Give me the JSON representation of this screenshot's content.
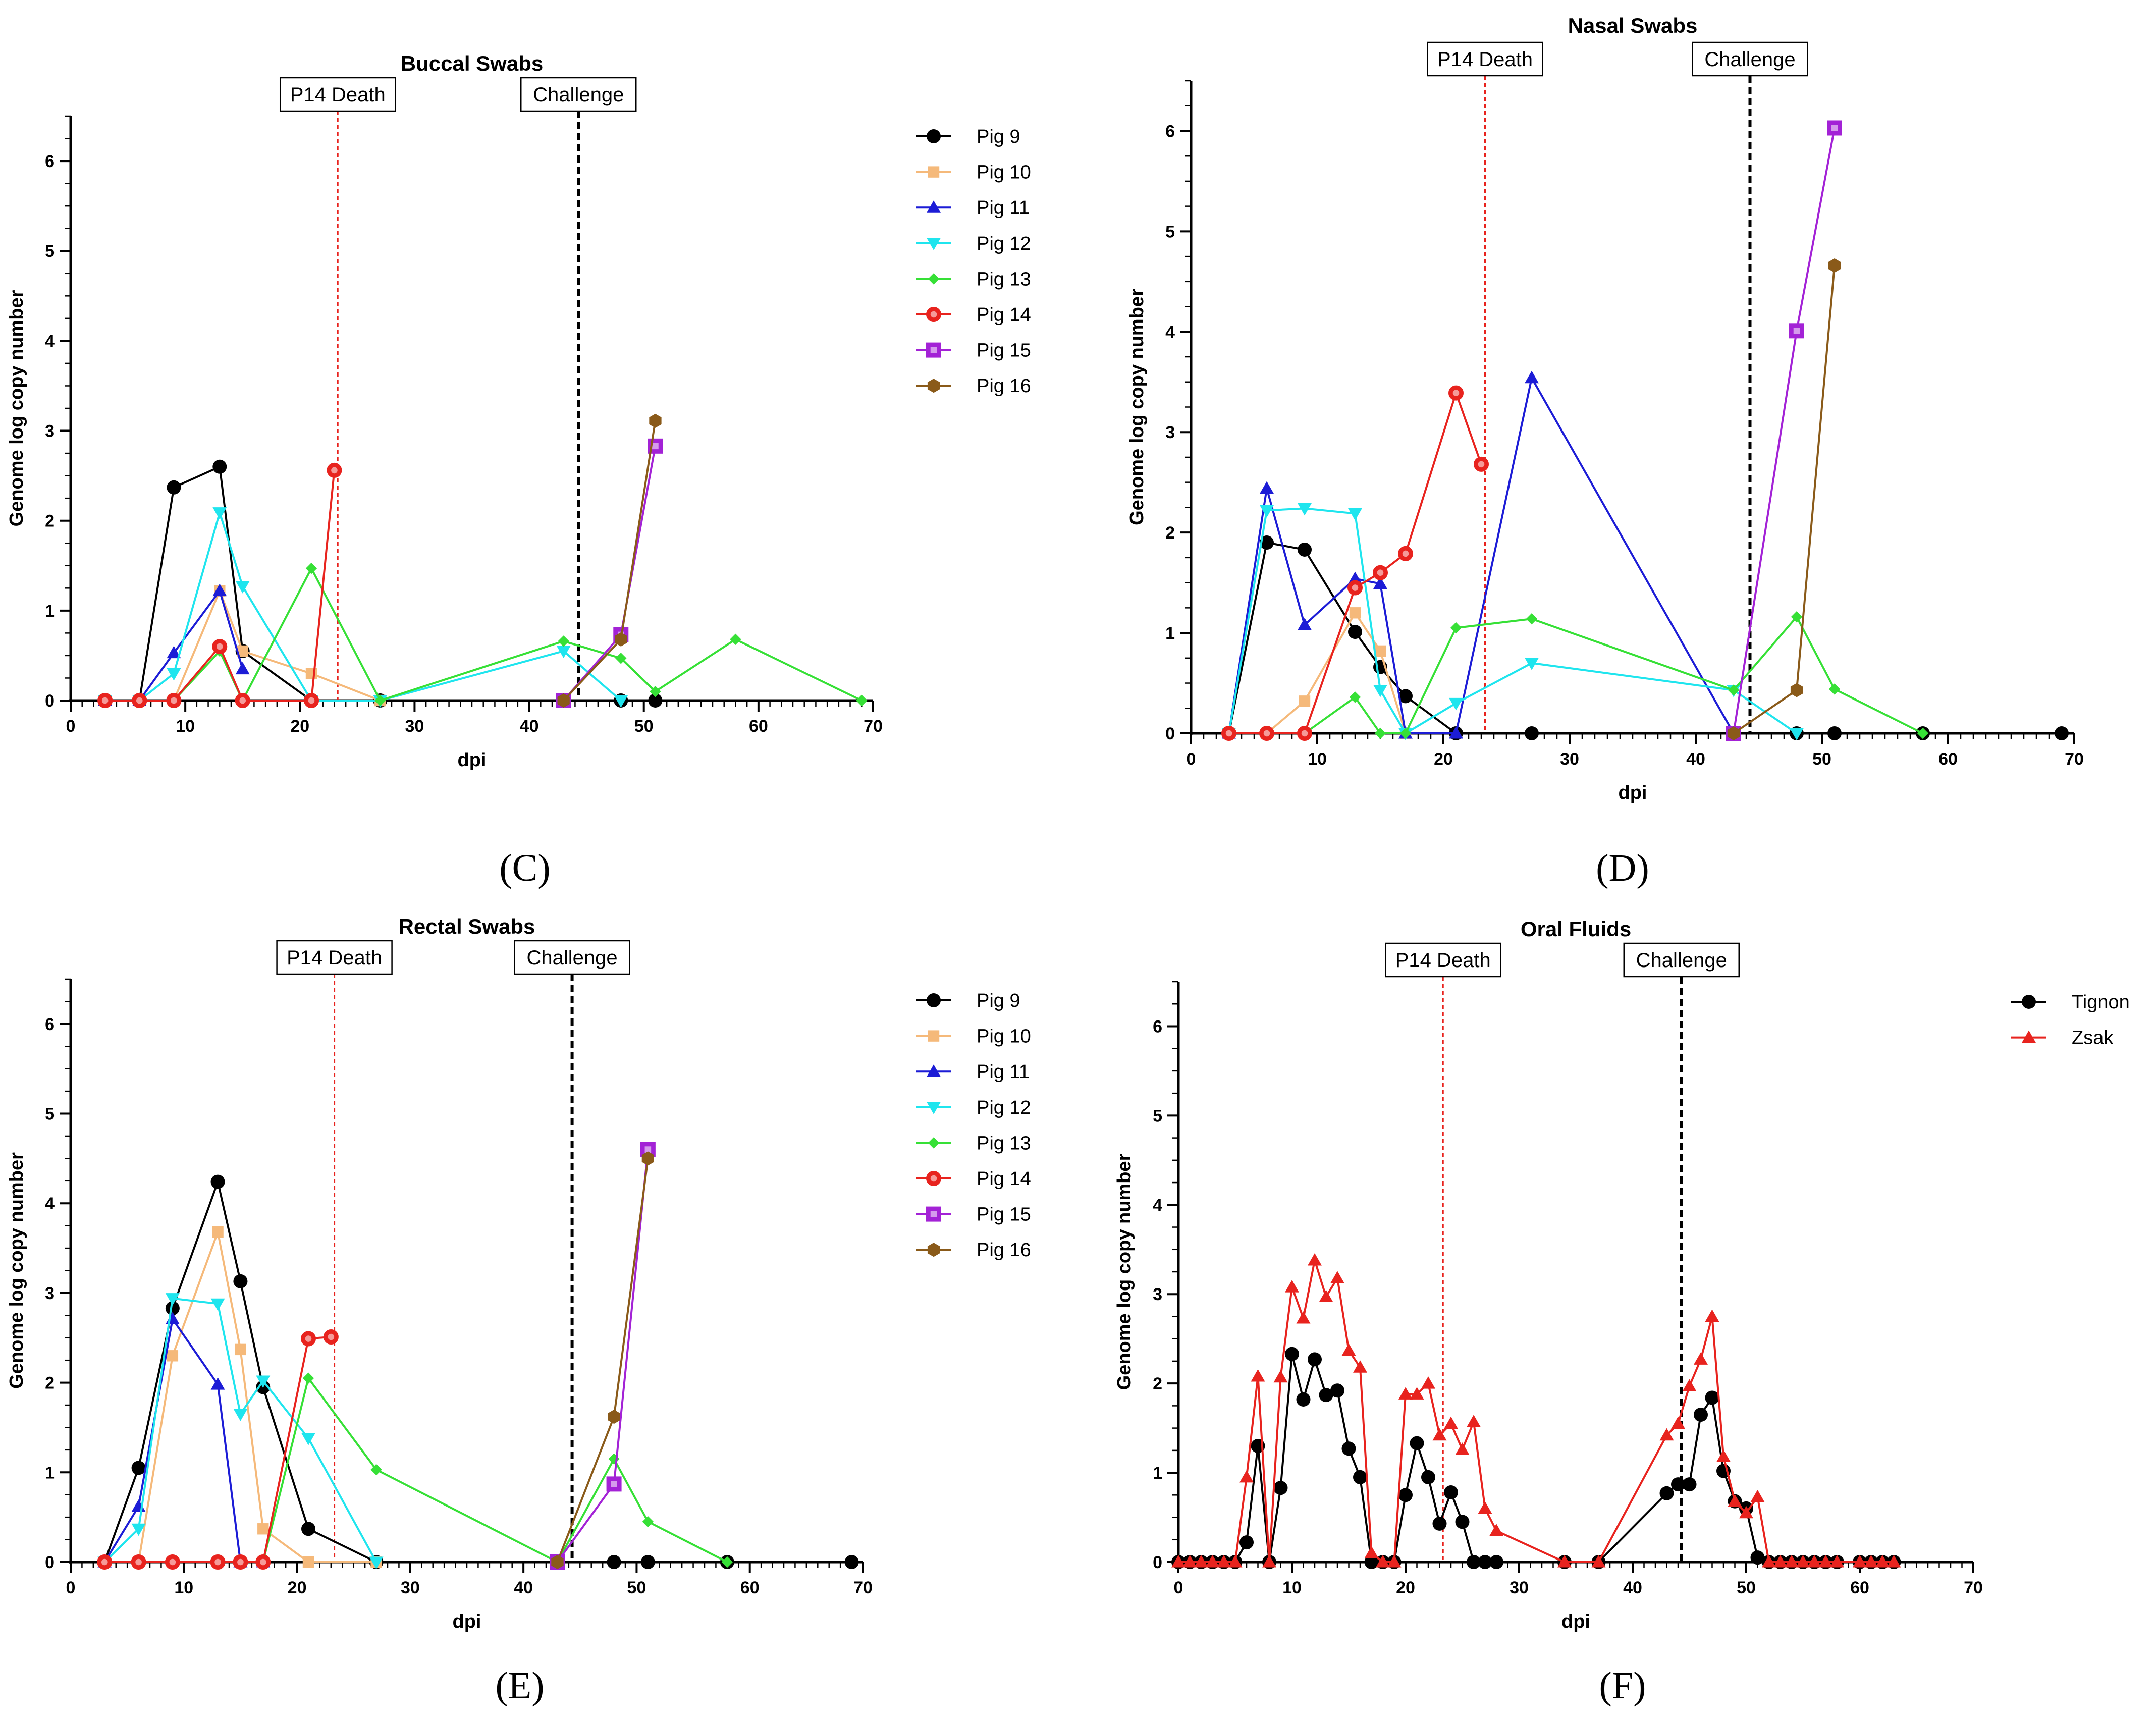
{
  "chart_data": [
    {
      "type": "line",
      "title": "Buccal Swabs",
      "xlabel": "dpi",
      "ylabel": "Genome log copy number",
      "xlim": [
        0,
        70
      ],
      "ylim": [
        0,
        6.5
      ],
      "xticks": [
        0,
        10,
        20,
        30,
        40,
        50,
        60,
        70
      ],
      "yticks": [
        0,
        1,
        2,
        3,
        4,
        5,
        6
      ],
      "annotations": [
        {
          "label": "P14 Death",
          "x": 23.3,
          "color": "#e8231e"
        },
        {
          "label": "Challenge",
          "x": 44.3,
          "color": "#000000"
        }
      ],
      "legend": "right",
      "series": [
        {
          "name": "Pig 9",
          "color": "#000000",
          "marker": "circle",
          "x": [
            3,
            6,
            9,
            13,
            15,
            21,
            27,
            48,
            51
          ],
          "y": [
            0,
            0,
            2.37,
            2.6,
            0.55,
            0,
            0,
            0,
            0
          ]
        },
        {
          "name": "Pig 10",
          "color": "#f5b97a",
          "marker": "square",
          "x": [
            3,
            6,
            9,
            13,
            15,
            21,
            27
          ],
          "y": [
            0,
            0,
            0,
            1.22,
            0.55,
            0.3,
            0
          ]
        },
        {
          "name": "Pig 11",
          "color": "#1c1cd6",
          "marker": "triangle-up",
          "x": [
            3,
            6,
            9,
            13,
            15
          ],
          "y": [
            0,
            0,
            0.53,
            1.22,
            0.35
          ]
        },
        {
          "name": "Pig 12",
          "color": "#1fe5ee",
          "marker": "triangle-down",
          "x": [
            3,
            6,
            9,
            13,
            15,
            21,
            27,
            43,
            48
          ],
          "y": [
            0,
            0,
            0.3,
            2.09,
            1.27,
            0,
            0,
            0.55,
            0
          ]
        },
        {
          "name": "Pig 13",
          "color": "#36e036",
          "marker": "diamond",
          "x": [
            3,
            6,
            9,
            13,
            15,
            21,
            27,
            43,
            48,
            51,
            58,
            69
          ],
          "y": [
            0,
            0,
            0,
            0.55,
            0,
            1.47,
            0,
            0.66,
            0.47,
            0.1,
            0.68,
            0
          ]
        },
        {
          "name": "Pig 14",
          "color": "#e8231e",
          "marker": "circle-open",
          "x": [
            3,
            6,
            9,
            13,
            15,
            21,
            23
          ],
          "y": [
            0,
            0,
            0,
            0.6,
            0,
            0,
            2.56
          ]
        },
        {
          "name": "Pig 15",
          "color": "#a322d6",
          "marker": "square-open",
          "x": [
            43,
            48,
            51
          ],
          "y": [
            0,
            0.73,
            2.83
          ]
        },
        {
          "name": "Pig 16",
          "color": "#8a5a19",
          "marker": "hexagon",
          "x": [
            43,
            48,
            51
          ],
          "y": [
            0,
            0.68,
            3.11
          ]
        }
      ]
    },
    {
      "type": "line",
      "title": "Nasal Swabs",
      "xlabel": "dpi",
      "ylabel": "Genome log copy number",
      "xlim": [
        0,
        70
      ],
      "ylim": [
        0,
        6.5
      ],
      "xticks": [
        0,
        10,
        20,
        30,
        40,
        50,
        60,
        70
      ],
      "yticks": [
        0,
        1,
        2,
        3,
        4,
        5,
        6
      ],
      "annotations": [
        {
          "label": "P14 Death",
          "x": 23.3,
          "color": "#e8231e"
        },
        {
          "label": "Challenge",
          "x": 44.3,
          "color": "#000000"
        }
      ],
      "legend": "none",
      "series": [
        {
          "name": "Pig 9",
          "color": "#000000",
          "marker": "circle",
          "x": [
            3,
            6,
            9,
            13,
            15,
            17,
            21,
            27,
            43,
            48,
            51,
            58,
            69
          ],
          "y": [
            0,
            1.9,
            1.83,
            1.01,
            0.66,
            0.37,
            0,
            0,
            0,
            0,
            0,
            0,
            0
          ]
        },
        {
          "name": "Pig 10",
          "color": "#f5b97a",
          "marker": "square",
          "x": [
            3,
            6,
            9,
            13,
            15,
            17
          ],
          "y": [
            0,
            0,
            0.32,
            1.2,
            0.82,
            0
          ]
        },
        {
          "name": "Pig 11",
          "color": "#1c1cd6",
          "marker": "triangle-up",
          "x": [
            3,
            6,
            9,
            13,
            15,
            17,
            21,
            27,
            43
          ],
          "y": [
            0,
            2.44,
            1.08,
            1.54,
            1.49,
            0,
            0,
            3.54,
            0
          ]
        },
        {
          "name": "Pig 12",
          "color": "#1fe5ee",
          "marker": "triangle-down",
          "x": [
            3,
            6,
            9,
            13,
            15,
            17,
            21,
            27,
            43,
            48
          ],
          "y": [
            0,
            2.22,
            2.24,
            2.19,
            0.43,
            0,
            0.3,
            0.7,
            0.43,
            0
          ]
        },
        {
          "name": "Pig 13",
          "color": "#36e036",
          "marker": "diamond",
          "x": [
            3,
            6,
            9,
            13,
            15,
            17,
            21,
            27,
            43,
            48,
            51,
            58
          ],
          "y": [
            0,
            0,
            0,
            0.36,
            0,
            0,
            1.05,
            1.14,
            0.43,
            1.16,
            0.44,
            0
          ]
        },
        {
          "name": "Pig 14",
          "color": "#e8231e",
          "marker": "circle-open",
          "x": [
            3,
            6,
            9,
            13,
            15,
            17,
            21,
            23
          ],
          "y": [
            0,
            0,
            0,
            1.45,
            1.6,
            1.79,
            3.39,
            2.68
          ]
        },
        {
          "name": "Pig 15",
          "color": "#a322d6",
          "marker": "square-open",
          "x": [
            43,
            48,
            51
          ],
          "y": [
            0,
            4.01,
            6.03
          ]
        },
        {
          "name": "Pig 16",
          "color": "#8a5a19",
          "marker": "hexagon",
          "x": [
            43,
            48,
            51
          ],
          "y": [
            0,
            0.43,
            4.66
          ]
        }
      ]
    },
    {
      "type": "line",
      "title": "Rectal Swabs",
      "xlabel": "dpi",
      "ylabel": "Genome log copy number",
      "xlim": [
        0,
        70
      ],
      "ylim": [
        0,
        6.5
      ],
      "xticks": [
        0,
        10,
        20,
        30,
        40,
        50,
        60,
        70
      ],
      "yticks": [
        0,
        1,
        2,
        3,
        4,
        5,
        6
      ],
      "annotations": [
        {
          "label": "P14 Death",
          "x": 23.3,
          "color": "#e8231e"
        },
        {
          "label": "Challenge",
          "x": 44.3,
          "color": "#000000"
        }
      ],
      "legend": "right",
      "series": [
        {
          "name": "Pig 9",
          "color": "#000000",
          "marker": "circle",
          "x": [
            3,
            6,
            9,
            13,
            15,
            17,
            21,
            27,
            48,
            51,
            58,
            69
          ],
          "y": [
            0,
            1.05,
            2.83,
            4.24,
            3.13,
            1.95,
            0.37,
            0,
            0,
            0,
            0,
            0
          ]
        },
        {
          "name": "Pig 10",
          "color": "#f5b97a",
          "marker": "square",
          "x": [
            3,
            6,
            9,
            13,
            15,
            17,
            21,
            27
          ],
          "y": [
            0,
            0,
            2.3,
            3.68,
            2.37,
            0.37,
            0,
            0
          ]
        },
        {
          "name": "Pig 11",
          "color": "#1c1cd6",
          "marker": "triangle-up",
          "x": [
            3,
            6,
            9,
            13,
            15,
            17
          ],
          "y": [
            0,
            0.62,
            2.71,
            1.98,
            0,
            0
          ]
        },
        {
          "name": "Pig 12",
          "color": "#1fe5ee",
          "marker": "triangle-down",
          "x": [
            3,
            6,
            9,
            13,
            15,
            17,
            21,
            27
          ],
          "y": [
            0,
            0.37,
            2.94,
            2.88,
            1.65,
            2.02,
            1.38,
            0
          ]
        },
        {
          "name": "Pig 13",
          "color": "#36e036",
          "marker": "diamond",
          "x": [
            3,
            6,
            9,
            13,
            15,
            17,
            21,
            27,
            43,
            48,
            51,
            58
          ],
          "y": [
            0,
            0,
            0,
            0,
            0,
            0,
            2.05,
            1.03,
            0,
            1.15,
            0.45,
            0
          ]
        },
        {
          "name": "Pig 14",
          "color": "#e8231e",
          "marker": "circle-open",
          "x": [
            3,
            6,
            9,
            13,
            15,
            17,
            21,
            23
          ],
          "y": [
            0,
            0,
            0,
            0,
            0,
            0,
            2.49,
            2.51
          ]
        },
        {
          "name": "Pig 15",
          "color": "#a322d6",
          "marker": "square-open",
          "x": [
            43,
            48,
            51
          ],
          "y": [
            0,
            0.87,
            4.6
          ]
        },
        {
          "name": "Pig 16",
          "color": "#8a5a19",
          "marker": "hexagon",
          "x": [
            43,
            48,
            51
          ],
          "y": [
            0,
            1.62,
            4.5
          ]
        }
      ]
    },
    {
      "type": "line",
      "title": "Oral Fluids",
      "xlabel": "dpi",
      "ylabel": "Genome log copy number",
      "xlim": [
        0,
        70
      ],
      "ylim": [
        0,
        6.5
      ],
      "xticks": [
        0,
        10,
        20,
        30,
        40,
        50,
        60,
        70
      ],
      "yticks": [
        0,
        1,
        2,
        3,
        4,
        5,
        6
      ],
      "annotations": [
        {
          "label": "P14 Death",
          "x": 23.3,
          "color": "#e8231e"
        },
        {
          "label": "Challenge",
          "x": 44.3,
          "color": "#000000"
        }
      ],
      "legend": "right",
      "series": [
        {
          "name": "Tignon",
          "color": "#000000",
          "marker": "circle",
          "x": [
            0,
            1,
            2,
            3,
            4,
            5,
            6,
            7,
            8,
            9,
            10,
            11,
            12,
            13,
            14,
            15,
            16,
            17,
            18,
            19,
            20,
            21,
            22,
            23,
            24,
            25,
            26,
            27,
            28,
            34,
            37,
            43,
            44,
            45,
            46,
            47,
            48,
            49,
            50,
            51,
            52,
            53,
            54,
            55,
            56,
            57,
            58,
            60,
            61,
            62,
            63
          ],
          "y": [
            0,
            0,
            0,
            0,
            0,
            0,
            0.22,
            1.3,
            0,
            0.83,
            2.33,
            1.82,
            2.27,
            1.87,
            1.92,
            1.27,
            0.95,
            0,
            0,
            0,
            0.75,
            1.33,
            0.95,
            0.43,
            0.78,
            0.45,
            0,
            0,
            0,
            0,
            0,
            0.77,
            0.87,
            0.87,
            1.65,
            1.84,
            1.02,
            0.68,
            0.6,
            0.05,
            0,
            0,
            0,
            0,
            0,
            0,
            0,
            0,
            0,
            0,
            0
          ]
        },
        {
          "name": "Zsak",
          "color": "#e8231e",
          "marker": "triangle-up",
          "x": [
            0,
            1,
            2,
            3,
            4,
            5,
            6,
            7,
            8,
            9,
            10,
            11,
            12,
            13,
            14,
            15,
            16,
            17,
            18,
            19,
            20,
            21,
            22,
            23,
            24,
            25,
            26,
            27,
            28,
            34,
            37,
            43,
            44,
            45,
            46,
            47,
            48,
            49,
            50,
            51,
            52,
            53,
            54,
            55,
            56,
            57,
            58,
            60,
            61,
            62,
            63
          ],
          "y": [
            0,
            0,
            0,
            0,
            0,
            0,
            0.95,
            2.08,
            0,
            2.07,
            3.08,
            2.73,
            3.38,
            2.97,
            3.18,
            2.37,
            2.18,
            0.1,
            0,
            0,
            1.88,
            1.88,
            2.0,
            1.42,
            1.55,
            1.26,
            1.57,
            0.6,
            0.35,
            0,
            0,
            1.42,
            1.55,
            1.97,
            2.27,
            2.75,
            1.18,
            0.68,
            0.55,
            0.73,
            0,
            0,
            0,
            0,
            0,
            0,
            0,
            0,
            0,
            0,
            0
          ]
        }
      ]
    }
  ],
  "panel_labels": [
    "(C)",
    "(D)",
    "(E)",
    "(F)"
  ]
}
